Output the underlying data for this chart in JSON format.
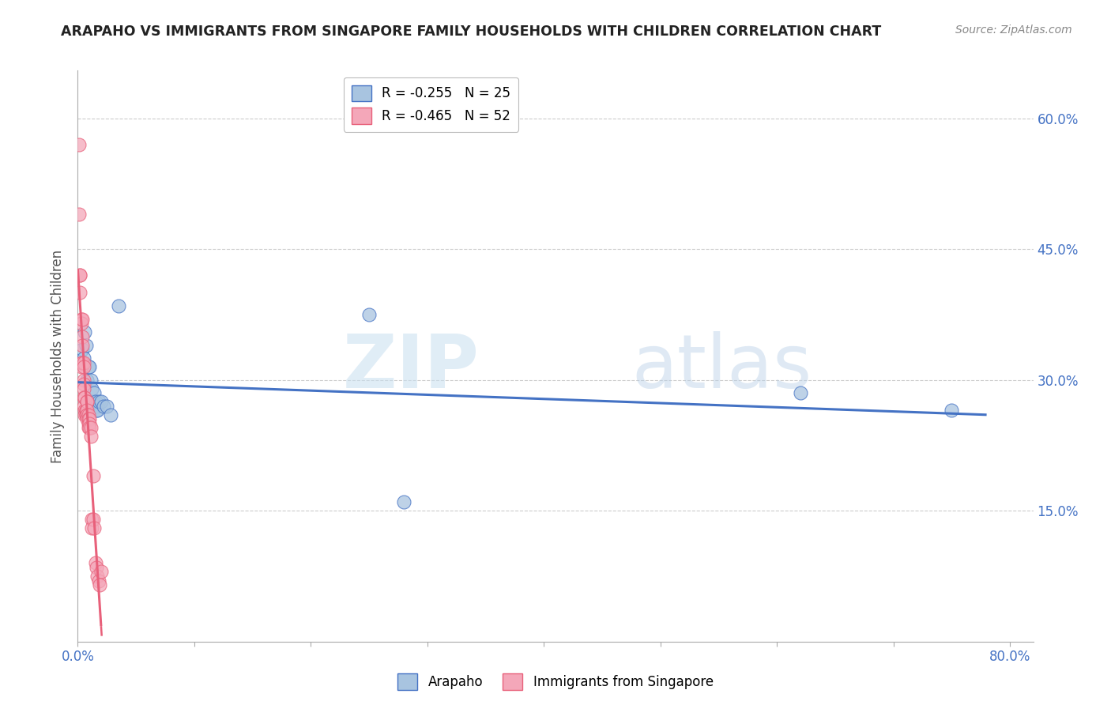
{
  "title": "ARAPAHO VS IMMIGRANTS FROM SINGAPORE FAMILY HOUSEHOLDS WITH CHILDREN CORRELATION CHART",
  "source": "Source: ZipAtlas.com",
  "ylabel": "Family Households with Children",
  "legend_label1": "Arapaho",
  "legend_label2": "Immigrants from Singapore",
  "r1": -0.255,
  "n1": 25,
  "r2": -0.465,
  "n2": 52,
  "color1": "#a8c4e0",
  "color1_line": "#4472c4",
  "color2": "#f4a7b9",
  "color2_line": "#e8607a",
  "x_ticks": [
    0.0,
    0.1,
    0.2,
    0.3,
    0.4,
    0.5,
    0.6,
    0.7,
    0.8
  ],
  "x_tick_labels": [
    "0.0%",
    "",
    "",
    "",
    "",
    "",
    "",
    "",
    "80.0%"
  ],
  "y_ticks": [
    0.0,
    0.15,
    0.3,
    0.45,
    0.6
  ],
  "y_tick_labels": [
    "",
    "15.0%",
    "30.0%",
    "45.0%",
    "60.0%"
  ],
  "xlim": [
    0.0,
    0.82
  ],
  "ylim": [
    0.0,
    0.655
  ],
  "watermark_zip": "ZIP",
  "watermark_atlas": "atlas",
  "arapaho_x": [
    0.004,
    0.005,
    0.006,
    0.007,
    0.008,
    0.009,
    0.01,
    0.011,
    0.012,
    0.013,
    0.014,
    0.015,
    0.016,
    0.016,
    0.017,
    0.018,
    0.02,
    0.022,
    0.025,
    0.028,
    0.035,
    0.25,
    0.28,
    0.62,
    0.75
  ],
  "arapaho_y": [
    0.335,
    0.325,
    0.355,
    0.34,
    0.3,
    0.315,
    0.315,
    0.3,
    0.29,
    0.275,
    0.285,
    0.275,
    0.27,
    0.265,
    0.265,
    0.275,
    0.275,
    0.27,
    0.27,
    0.26,
    0.385,
    0.375,
    0.16,
    0.285,
    0.265
  ],
  "singapore_x": [
    0.001,
    0.001,
    0.002,
    0.002,
    0.002,
    0.003,
    0.003,
    0.003,
    0.003,
    0.004,
    0.004,
    0.004,
    0.004,
    0.005,
    0.005,
    0.005,
    0.005,
    0.005,
    0.005,
    0.005,
    0.006,
    0.006,
    0.006,
    0.007,
    0.007,
    0.007,
    0.007,
    0.008,
    0.008,
    0.008,
    0.008,
    0.008,
    0.009,
    0.009,
    0.009,
    0.009,
    0.01,
    0.01,
    0.01,
    0.011,
    0.011,
    0.012,
    0.012,
    0.013,
    0.013,
    0.014,
    0.015,
    0.016,
    0.017,
    0.018,
    0.019,
    0.02
  ],
  "singapore_y": [
    0.57,
    0.49,
    0.42,
    0.42,
    0.4,
    0.37,
    0.365,
    0.32,
    0.315,
    0.37,
    0.35,
    0.34,
    0.32,
    0.32,
    0.315,
    0.3,
    0.295,
    0.29,
    0.28,
    0.27,
    0.28,
    0.265,
    0.26,
    0.265,
    0.265,
    0.26,
    0.26,
    0.275,
    0.275,
    0.265,
    0.26,
    0.255,
    0.26,
    0.255,
    0.25,
    0.245,
    0.255,
    0.25,
    0.245,
    0.245,
    0.235,
    0.14,
    0.13,
    0.19,
    0.14,
    0.13,
    0.09,
    0.085,
    0.075,
    0.07,
    0.065,
    0.08
  ]
}
